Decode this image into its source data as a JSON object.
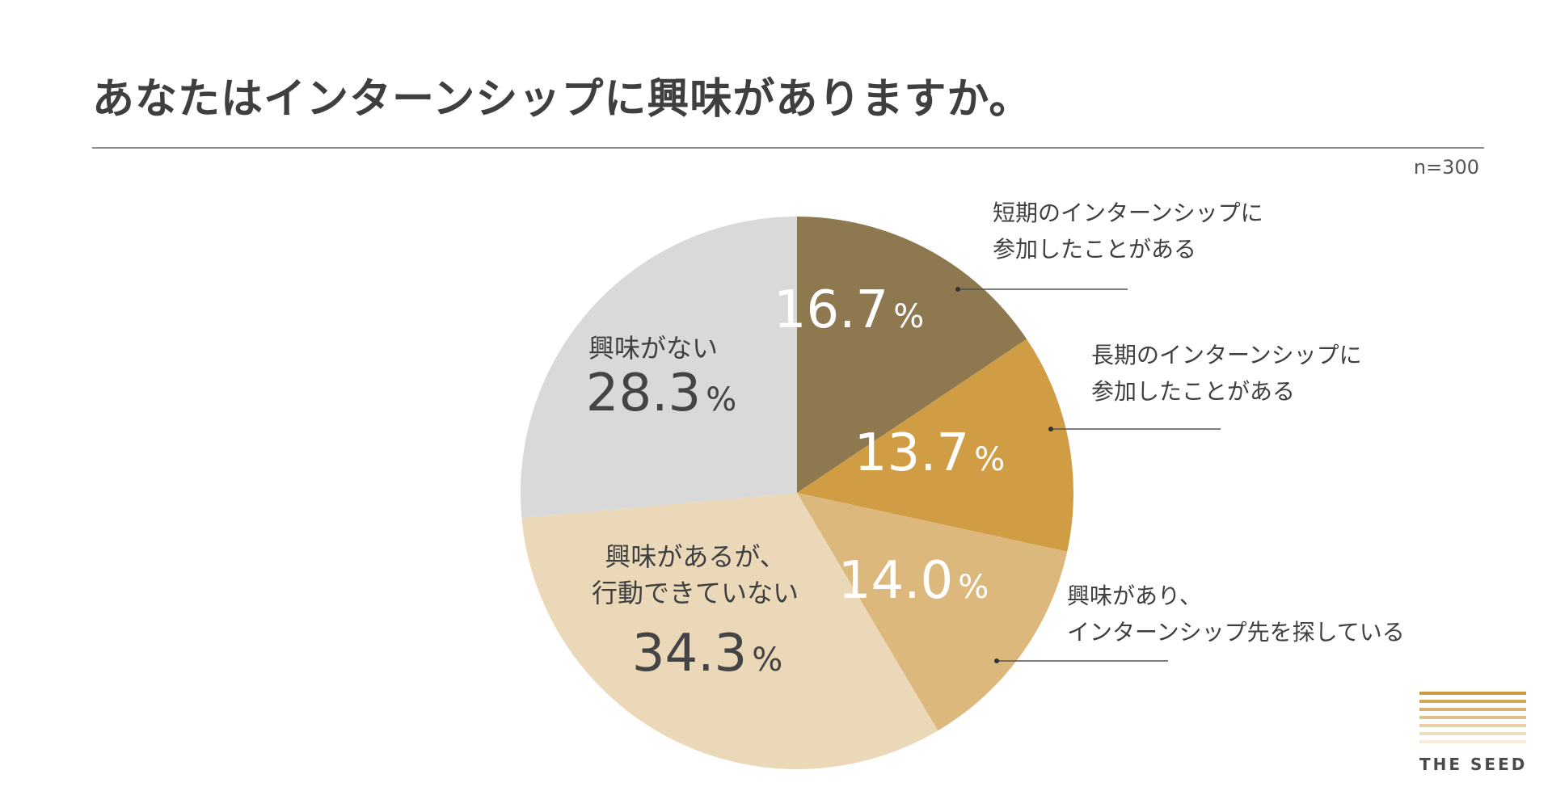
{
  "header": {
    "title": "あなたはインターンシップに興味がありますか。",
    "sample_size": "n=300"
  },
  "chart_data": {
    "type": "pie",
    "title": "あなたはインターンシップに興味がありますか。",
    "start": "12 o'clock",
    "direction": "clockwise",
    "unit": "%",
    "slices": [
      {
        "label_lines": [
          "短期のインターンシップに",
          "参加したことがある"
        ],
        "value": 16.7,
        "value_text": "16.7",
        "color": "#8e7850",
        "value_color": "#ffffff",
        "label_position": "outside"
      },
      {
        "label_lines": [
          "長期のインターンシップに",
          "参加したことがある"
        ],
        "value": 13.7,
        "value_text": "13.7",
        "color": "#d09d45",
        "value_color": "#ffffff",
        "label_position": "outside"
      },
      {
        "label_lines": [
          "興味があり、",
          "インターンシップ先を探している"
        ],
        "value": 14.0,
        "value_text": "14.0",
        "color": "#ddb87c",
        "value_color": "#ffffff",
        "label_position": "outside"
      },
      {
        "label_lines": [
          "興味があるが、",
          "行動できていない"
        ],
        "value": 34.3,
        "value_text": "34.3",
        "color": "#ead8b9",
        "value_color": "#444444",
        "label_position": "inside"
      },
      {
        "label_lines": [
          "興味がない"
        ],
        "value": 28.3,
        "value_text": "28.3",
        "color": "#d9d9d9",
        "value_color": "#444444",
        "label_position": "inside"
      }
    ]
  },
  "logo": {
    "text": "THE SEED",
    "stripe_colors": [
      "#c99a45",
      "#d2a55a",
      "#dab272",
      "#e2c08c",
      "#e9cea6",
      "#f0dcc0",
      "#f6eadb"
    ]
  }
}
